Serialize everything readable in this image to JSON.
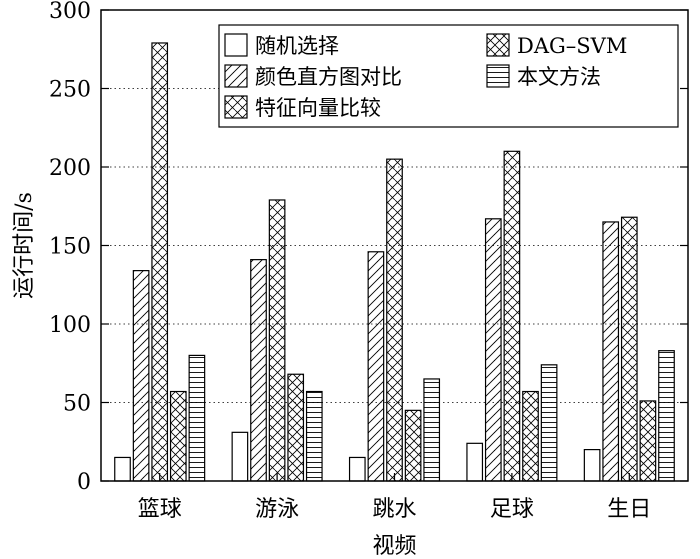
{
  "chart_data": {
    "type": "bar",
    "title": "",
    "xlabel": "视频",
    "ylabel": "运行时间/s",
    "ylim": [
      0,
      300
    ],
    "yticks": [
      0,
      50,
      100,
      150,
      200,
      250,
      300
    ],
    "grid": true,
    "legend_position": "top-right",
    "categories": [
      "篮球",
      "游泳",
      "跳水",
      "足球",
      "生日"
    ],
    "series": [
      {
        "name": "随机选择",
        "pattern": "none",
        "values": [
          15,
          31,
          15,
          24,
          20
        ]
      },
      {
        "name": "颜色直方图对比",
        "pattern": "diagonal",
        "values": [
          134,
          141,
          146,
          167,
          165
        ]
      },
      {
        "name": "特征向量比较",
        "pattern": "zigzag",
        "values": [
          279,
          179,
          205,
          210,
          168
        ]
      },
      {
        "name": "DAG–SVM",
        "pattern": "crosshatch",
        "values": [
          57,
          68,
          45,
          57,
          51
        ]
      },
      {
        "name": "本文方法",
        "pattern": "horizontal",
        "values": [
          80,
          57,
          65,
          74,
          83
        ]
      }
    ]
  }
}
